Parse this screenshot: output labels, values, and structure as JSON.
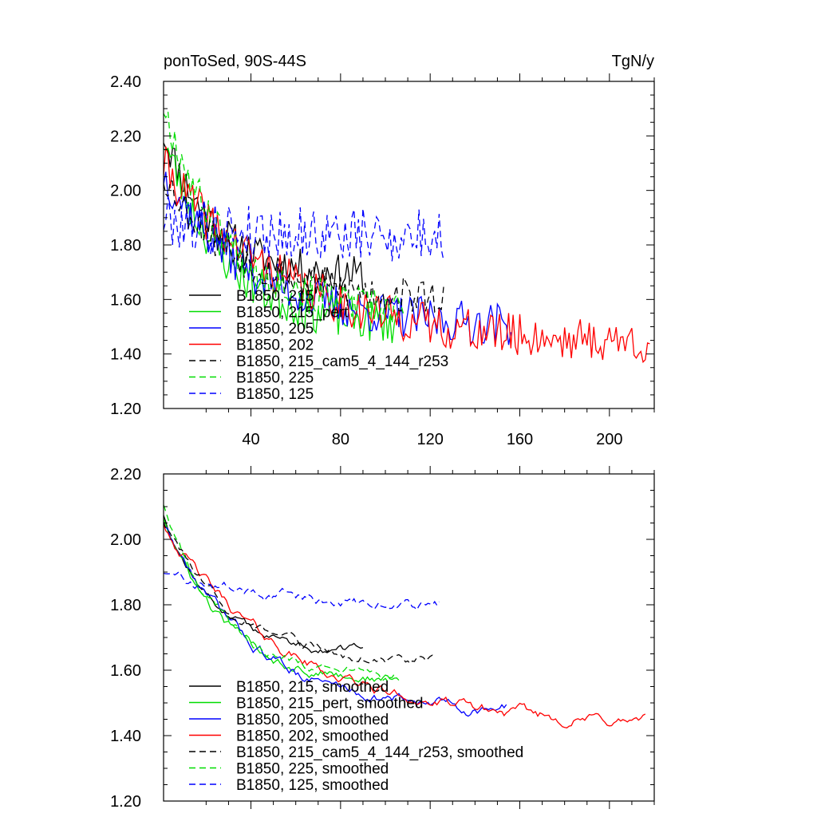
{
  "chart_data": [
    {
      "type": "line",
      "title_left": "ponToSed, 90S-44S",
      "title_right": "TgN/y",
      "xlim": [
        1,
        220
      ],
      "ylim": [
        1.2,
        2.4
      ],
      "xticks": [
        40,
        80,
        120,
        160,
        200
      ],
      "yticks": [
        1.2,
        1.4,
        1.6,
        1.8,
        2.0,
        2.2,
        2.4
      ],
      "ytick_labels": [
        "1.20",
        "1.40",
        "1.60",
        "1.80",
        "2.00",
        "2.20",
        "2.40"
      ],
      "grid": false,
      "legend_position": "bottom-left",
      "series": [
        {
          "name": "B1850, 215",
          "color": "#000000",
          "dash": false,
          "length": 90,
          "start": 2.2,
          "end": 1.68,
          "noise": 0.07,
          "seed": 11
        },
        {
          "name": "B1850, 215_pert",
          "color": "#00dd00",
          "dash": false,
          "length": 106,
          "start": 2.18,
          "end": 1.5,
          "noise": 0.08,
          "seed": 23
        },
        {
          "name": "B1850, 205",
          "color": "#0000ff",
          "dash": false,
          "length": 156,
          "start": 2.05,
          "end": 1.5,
          "noise": 0.08,
          "seed": 37
        },
        {
          "name": "B1850, 202",
          "color": "#ff0000",
          "dash": false,
          "length": 218,
          "start": 2.08,
          "end": 1.43,
          "noise": 0.08,
          "seed": 41
        },
        {
          "name": "B1850, 215_cam5_4_144_r253",
          "color": "#000000",
          "dash": true,
          "length": 126,
          "start": 2.05,
          "end": 1.6,
          "noise": 0.07,
          "seed": 53
        },
        {
          "name": "B1850, 225",
          "color": "#00dd00",
          "dash": true,
          "length": 108,
          "start": 2.3,
          "end": 1.55,
          "noise": 0.07,
          "seed": 67
        },
        {
          "name": "B1850, 125",
          "color": "#0000ff",
          "dash": true,
          "length": 126,
          "start": 1.9,
          "end": 1.83,
          "noise": 0.1,
          "seed": 79
        }
      ]
    },
    {
      "type": "line",
      "xlim": [
        1,
        220
      ],
      "ylim": [
        1.2,
        2.2
      ],
      "xticks": [
        40,
        80,
        120,
        160,
        200
      ],
      "yticks": [
        1.2,
        1.4,
        1.6,
        1.8,
        2.0,
        2.2
      ],
      "ytick_labels": [
        "1.20",
        "1.40",
        "1.60",
        "1.80",
        "2.00",
        "2.20"
      ],
      "grid": false,
      "legend_position": "bottom-left",
      "series": [
        {
          "name": "B1850, 215, smoothed",
          "color": "#000000",
          "dash": false,
          "length": 90,
          "start": 2.07,
          "end": 1.65,
          "noise": 0.015,
          "seed": 12
        },
        {
          "name": "B1850, 215_pert, smoothed",
          "color": "#00dd00",
          "dash": false,
          "length": 106,
          "start": 2.06,
          "end": 1.56,
          "noise": 0.018,
          "seed": 24
        },
        {
          "name": "B1850, 205, smoothed",
          "color": "#0000ff",
          "dash": false,
          "length": 154,
          "start": 2.04,
          "end": 1.47,
          "noise": 0.02,
          "seed": 38
        },
        {
          "name": "B1850, 202, smoothed",
          "color": "#ff0000",
          "dash": false,
          "length": 216,
          "start": 2.04,
          "end": 1.43,
          "noise": 0.02,
          "seed": 42
        },
        {
          "name": "B1850, 215_cam5_4_144_r253, smoothed",
          "color": "#000000",
          "dash": true,
          "length": 122,
          "start": 2.05,
          "end": 1.62,
          "noise": 0.018,
          "seed": 54
        },
        {
          "name": "B1850, 225, smoothed",
          "color": "#00dd00",
          "dash": true,
          "length": 104,
          "start": 2.1,
          "end": 1.57,
          "noise": 0.018,
          "seed": 68
        },
        {
          "name": "B1850, 125, smoothed",
          "color": "#0000ff",
          "dash": true,
          "length": 124,
          "start": 1.9,
          "end": 1.8,
          "noise": 0.02,
          "seed": 80
        }
      ]
    }
  ]
}
